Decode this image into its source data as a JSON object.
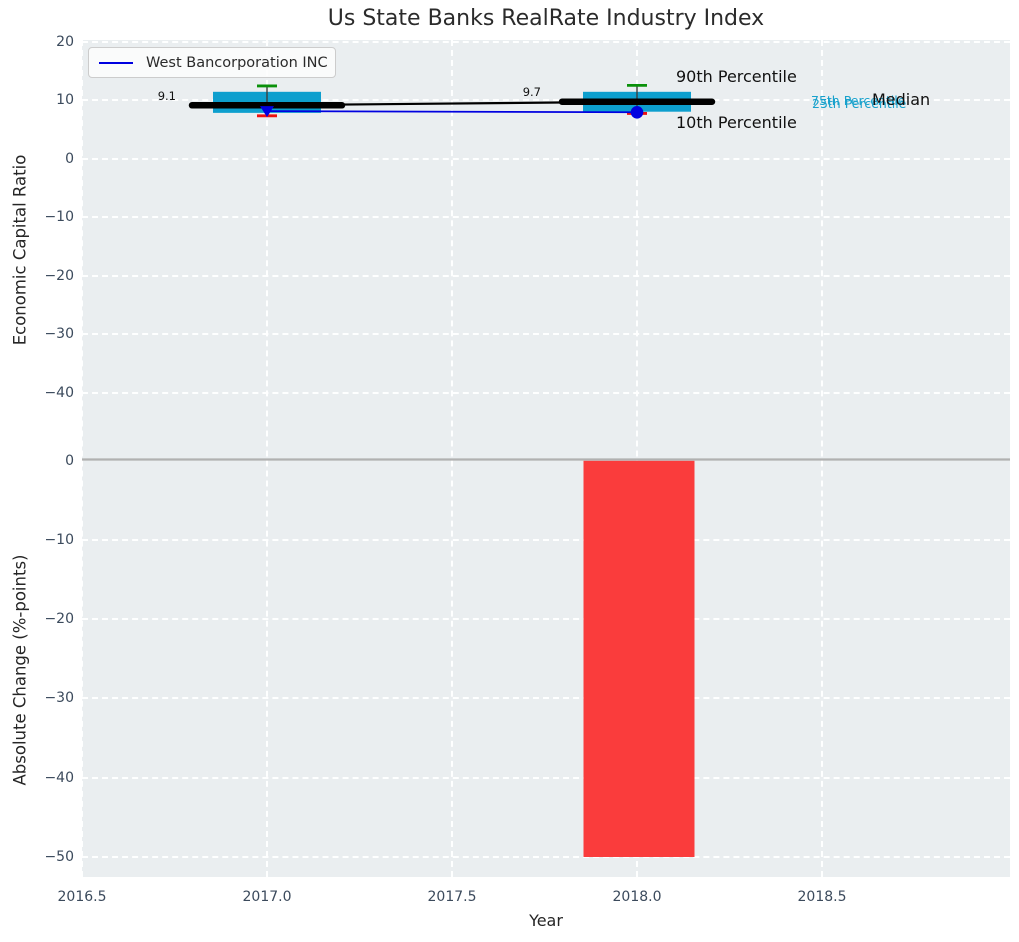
{
  "title": "Us State Banks RealRate Industry Index",
  "legend": {
    "label": "West Bancorporation INC"
  },
  "annotations": {
    "p90": "90th Percentile",
    "p10": "10th Percentile",
    "p75": "75th Percentile",
    "p25": "25th Percentile",
    "median": "Median"
  },
  "colors": {
    "axes_background": "#eaeef0",
    "grid": "#ffffff",
    "box_fill": "#0d9fce",
    "median_line": "#000000",
    "whisker_high_cap": "#0a910a",
    "whisker_low_cap": "#ee1111",
    "company_line": "#0000e0",
    "bar_fill": "#fa3c3c",
    "zero_line": "#b1b1b1",
    "tick_label": "#3b4a5c",
    "cyan_text": "#18a1cc"
  },
  "chart_data": [
    {
      "type": "box",
      "title": "Us State Banks RealRate Industry Index",
      "xlabel": "Year",
      "ylabel": "Economic Capital Ratio",
      "xlim": [
        2016.5,
        2019.0
      ],
      "ylim": [
        -51.5,
        20.5
      ],
      "xticks": [
        2016.5,
        2017.0,
        2017.5,
        2018.0,
        2018.5
      ],
      "yticks": [
        20,
        10,
        0,
        -10,
        -20,
        -30,
        -40
      ],
      "grid": "white dashed, axisbelow",
      "legend_position": "upper left",
      "boxes": [
        {
          "x": 2017,
          "p10": 7.3,
          "p25": 7.8,
          "median": 9.1,
          "p75": 11.4,
          "p90": 12.4,
          "label": "9.1"
        },
        {
          "x": 2018,
          "p10": 7.7,
          "p25": 8.0,
          "median": 9.7,
          "p75": 11.4,
          "p90": 12.5,
          "label": "9.7"
        }
      ],
      "series": [
        {
          "name": "West Bancorporation INC",
          "x": [
            2017,
            2018
          ],
          "y": [
            8.1,
            7.9
          ],
          "color": "blue",
          "markers": [
            "triangle-down",
            "circle"
          ]
        }
      ],
      "annotation_labels": [
        "90th Percentile",
        "10th Percentile",
        "75th Percentile",
        "25th Percentile",
        "Median"
      ]
    },
    {
      "type": "bar",
      "xlabel": "Year",
      "ylabel": "Absolute Change (%-points)",
      "x": [
        2018
      ],
      "values": [
        -50
      ],
      "bar_width": 0.3,
      "xticks": [
        2016.5,
        2017.0,
        2017.5,
        2018.0,
        2018.5
      ],
      "yticks": [
        0,
        -10,
        -20,
        -30,
        -40,
        -50
      ],
      "ylim": [
        -52.7,
        0.2
      ],
      "zero_line": 0
    }
  ]
}
